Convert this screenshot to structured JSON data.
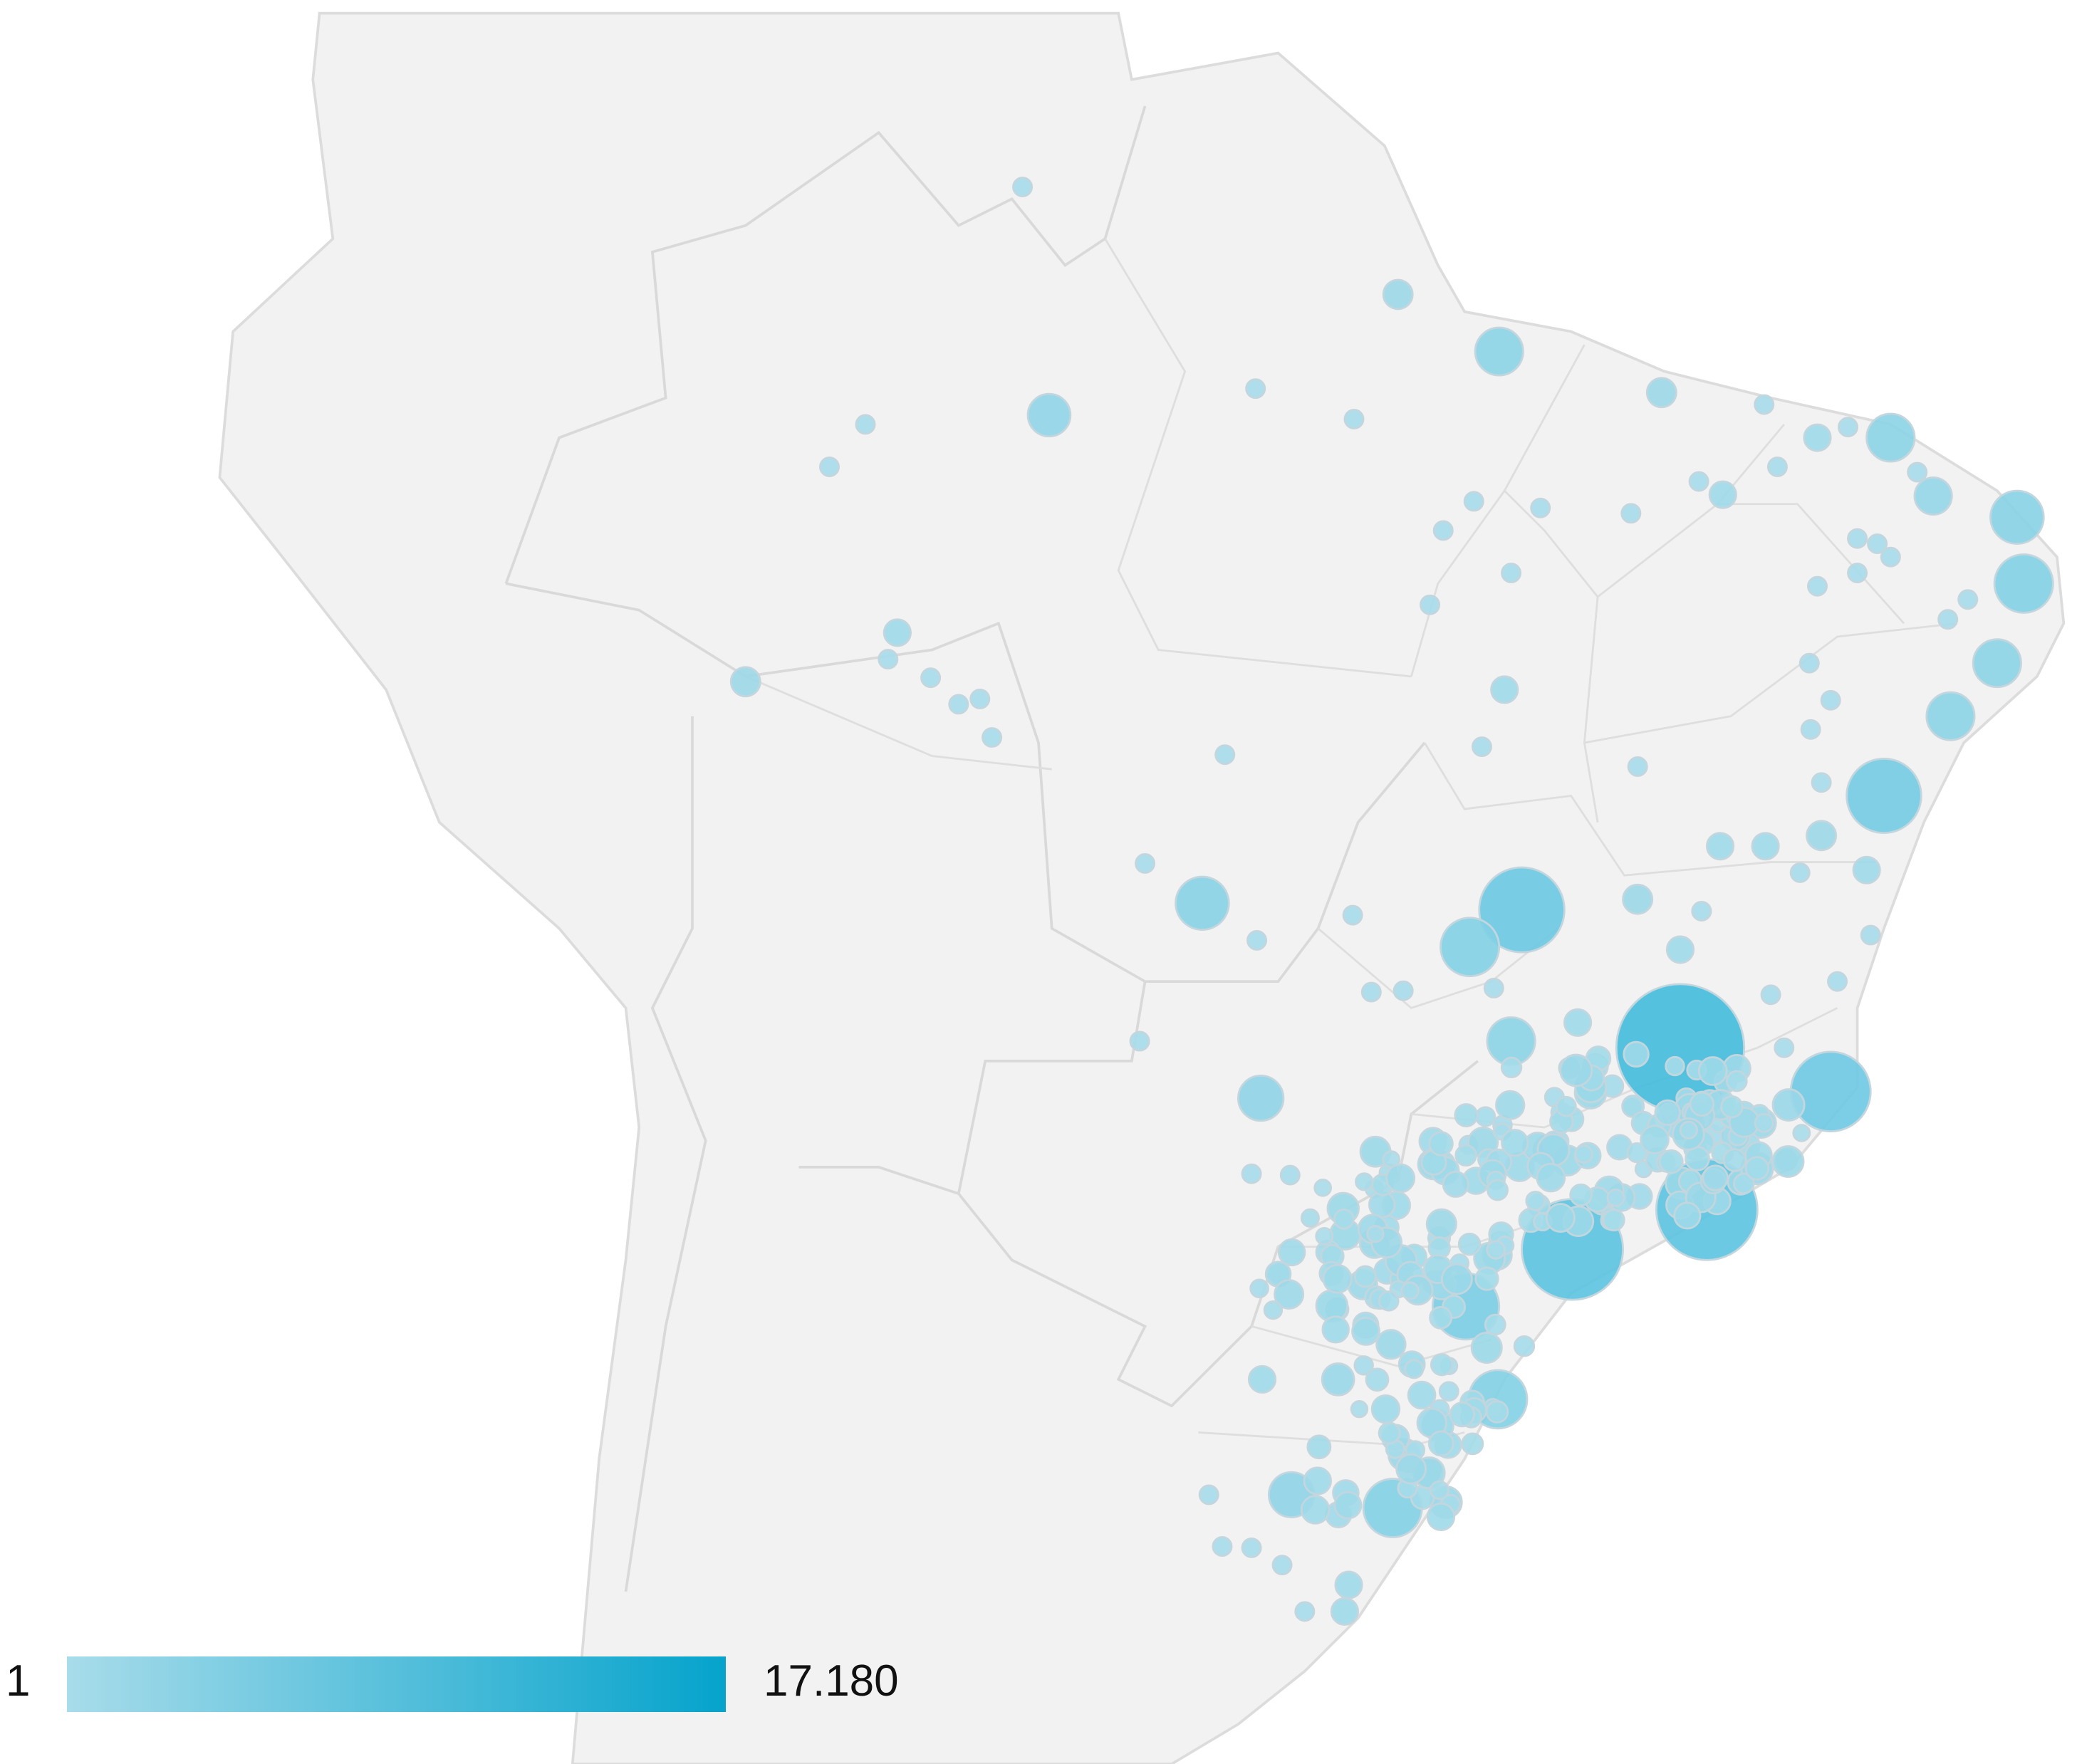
{
  "legend": {
    "min_label": "1",
    "max_label": "17.180",
    "min_value": 1,
    "max_value": 17180,
    "color_low": "#a8dcea",
    "color_high": "#05a3cc"
  },
  "map": {
    "land_color": "#f2f2f2",
    "border_color": "#d9d9d9",
    "bubble_outline_color": "#c3d6de"
  }
}
